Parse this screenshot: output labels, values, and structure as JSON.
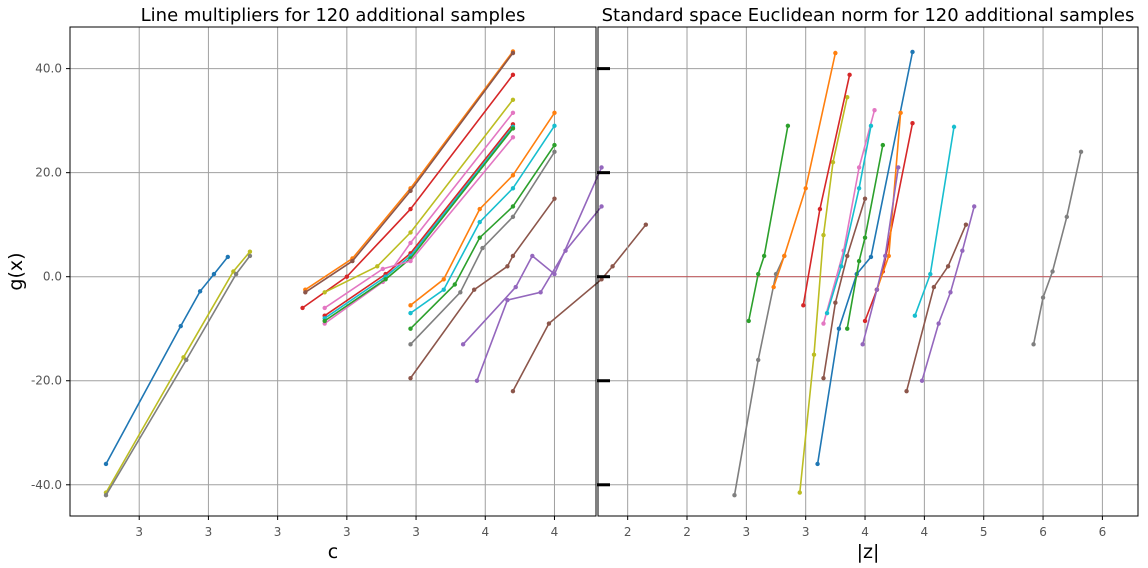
{
  "chart_data": [
    {
      "type": "line",
      "title": "Line multipliers for 120 additional samples",
      "xlabel": "c",
      "ylabel": "g(x)",
      "xlim": [
        2.25,
        4.15
      ],
      "ylim": [
        -46,
        48
      ],
      "xticks": [
        2.5,
        2.75,
        3.0,
        3.25,
        3.5,
        3.75,
        4.0
      ],
      "xtick_labels": [
        "3",
        "3",
        "3",
        "3",
        "3",
        "4",
        "4"
      ],
      "yticks": [
        -40,
        -20,
        0,
        20,
        40
      ],
      "ytick_labels": [
        "-40.0",
        "-20.0",
        "0.0",
        "20.0",
        "40.0"
      ],
      "grid": true,
      "series": [
        {
          "name": "s1",
          "color": "#1f77b4",
          "points": [
            [
              2.38,
              -36.0
            ],
            [
              2.65,
              -9.5
            ],
            [
              2.72,
              -2.8
            ],
            [
              2.77,
              0.5
            ],
            [
              2.82,
              3.8
            ]
          ]
        },
        {
          "name": "s2",
          "color": "#bcbd22",
          "points": [
            [
              2.38,
              -41.5
            ],
            [
              2.66,
              -15.5
            ],
            [
              2.84,
              1.0
            ],
            [
              2.9,
              4.8
            ]
          ]
        },
        {
          "name": "s3",
          "color": "#7f7f7f",
          "points": [
            [
              2.38,
              -42.0
            ],
            [
              2.67,
              -16.0
            ],
            [
              2.85,
              0.5
            ],
            [
              2.9,
              4.0
            ]
          ]
        },
        {
          "name": "s4",
          "color": "#ff7f0e",
          "points": [
            [
              3.1,
              -2.5
            ],
            [
              3.27,
              3.5
            ],
            [
              3.48,
              17.0
            ],
            [
              3.85,
              43.3
            ]
          ]
        },
        {
          "name": "s5",
          "color": "#8c564b",
          "points": [
            [
              3.1,
              -3.0
            ],
            [
              3.27,
              3.0
            ],
            [
              3.48,
              16.5
            ],
            [
              3.85,
              43.0
            ]
          ]
        },
        {
          "name": "s6",
          "color": "#d62728",
          "points": [
            [
              3.09,
              -6.0
            ],
            [
              3.25,
              0.0
            ],
            [
              3.48,
              13.0
            ],
            [
              3.85,
              38.8
            ]
          ]
        },
        {
          "name": "s7",
          "color": "#bcbd22",
          "points": [
            [
              3.17,
              -3.0
            ],
            [
              3.36,
              2.0
            ],
            [
              3.48,
              8.5
            ],
            [
              3.85,
              34.0
            ]
          ]
        },
        {
          "name": "s8",
          "color": "#e377c2",
          "points": [
            [
              3.17,
              -9.0
            ],
            [
              3.38,
              -1.0
            ],
            [
              3.48,
              6.5
            ],
            [
              3.85,
              31.5
            ]
          ]
        },
        {
          "name": "s9",
          "color": "#d62728",
          "points": [
            [
              3.17,
              -7.5
            ],
            [
              3.39,
              0.5
            ],
            [
              3.48,
              4.5
            ],
            [
              3.85,
              29.3
            ]
          ]
        },
        {
          "name": "s10",
          "color": "#17becf",
          "points": [
            [
              3.17,
              -8.0
            ],
            [
              3.39,
              0.0
            ],
            [
              3.48,
              4.0
            ],
            [
              3.85,
              28.8
            ]
          ]
        },
        {
          "name": "s11",
          "color": "#2ca02c",
          "points": [
            [
              3.17,
              -8.5
            ],
            [
              3.39,
              -0.5
            ],
            [
              3.48,
              3.5
            ],
            [
              3.85,
              28.5
            ]
          ]
        },
        {
          "name": "s12",
          "color": "#e377c2",
          "points": [
            [
              3.17,
              -6.0
            ],
            [
              3.38,
              1.5
            ],
            [
              3.48,
              3.0
            ],
            [
              3.85,
              26.8
            ]
          ]
        },
        {
          "name": "s13",
          "color": "#ff7f0e",
          "points": [
            [
              3.48,
              -5.5
            ],
            [
              3.6,
              -0.5
            ],
            [
              3.73,
              13.0
            ],
            [
              3.85,
              19.5
            ],
            [
              4.0,
              31.5
            ]
          ]
        },
        {
          "name": "s14",
          "color": "#17becf",
          "points": [
            [
              3.48,
              -7.0
            ],
            [
              3.6,
              -2.5
            ],
            [
              3.73,
              10.5
            ],
            [
              3.85,
              17.0
            ],
            [
              4.0,
              29.0
            ]
          ]
        },
        {
          "name": "s15",
          "color": "#2ca02c",
          "points": [
            [
              3.48,
              -10.0
            ],
            [
              3.64,
              -1.5
            ],
            [
              3.73,
              7.5
            ],
            [
              3.85,
              13.5
            ],
            [
              4.0,
              25.3
            ]
          ]
        },
        {
          "name": "s16",
          "color": "#7f7f7f",
          "points": [
            [
              3.48,
              -13.0
            ],
            [
              3.66,
              -3.0
            ],
            [
              3.74,
              5.5
            ],
            [
              3.85,
              11.5
            ],
            [
              4.0,
              24.0
            ]
          ]
        },
        {
          "name": "s17",
          "color": "#8c564b",
          "points": [
            [
              3.48,
              -19.5
            ],
            [
              3.71,
              -2.5
            ],
            [
              3.83,
              2.0
            ],
            [
              3.85,
              4.0
            ],
            [
              4.0,
              15.0
            ]
          ]
        },
        {
          "name": "s18",
          "color": "#9467bd",
          "points": [
            [
              3.67,
              -13.0
            ],
            [
              3.86,
              -2.0
            ],
            [
              3.92,
              4.0
            ],
            [
              4.0,
              0.5
            ],
            [
              4.17,
              21.0
            ]
          ]
        },
        {
          "name": "s19",
          "color": "#9467bd",
          "points": [
            [
              3.72,
              -20.0
            ],
            [
              3.83,
              -4.5
            ],
            [
              3.95,
              -3.0
            ],
            [
              4.04,
              5.0
            ],
            [
              4.17,
              13.5
            ]
          ]
        },
        {
          "name": "s20",
          "color": "#8c564b",
          "points": [
            [
              3.85,
              -22.0
            ],
            [
              3.98,
              -9.0
            ],
            [
              4.17,
              -0.5
            ],
            [
              4.21,
              2.0
            ],
            [
              4.33,
              10.0
            ]
          ]
        }
      ]
    },
    {
      "type": "line",
      "title": "Standard space Euclidean norm for 120 additional samples",
      "xlabel": "|z|",
      "ylabel": "",
      "xlim": [
        1.75,
        6.3
      ],
      "ylim": [
        -46,
        48
      ],
      "xticks": [
        2,
        2.5,
        3,
        3.5,
        4,
        4.5,
        5,
        5.5,
        6
      ],
      "xtick_labels": [
        "2",
        "2",
        "3",
        "3",
        "4",
        "4",
        "5",
        "6",
        "6"
      ],
      "yticks": [
        -40,
        -20,
        0,
        20,
        40
      ],
      "grid": true,
      "reference_y": 0,
      "series": [
        {
          "name": "s1",
          "color": "#1f77b4",
          "points": [
            [
              3.6,
              -36.0
            ],
            [
              3.78,
              -10.0
            ],
            [
              3.93,
              0.5
            ],
            [
              4.05,
              3.8
            ],
            [
              4.4,
              43.2
            ]
          ]
        },
        {
          "name": "s2",
          "color": "#bcbd22",
          "points": [
            [
              3.45,
              -41.5
            ],
            [
              3.57,
              -15.0
            ],
            [
              3.65,
              8.0
            ],
            [
              3.73,
              22.0
            ],
            [
              3.85,
              34.5
            ]
          ]
        },
        {
          "name": "s3",
          "color": "#7f7f7f",
          "points": [
            [
              2.9,
              -42.0
            ],
            [
              3.1,
              -16.0
            ],
            [
              3.25,
              0.5
            ],
            [
              3.32,
              4.0
            ]
          ]
        },
        {
          "name": "s4",
          "color": "#ff7f0e",
          "points": [
            [
              3.23,
              -2.0
            ],
            [
              3.32,
              4.0
            ],
            [
              3.5,
              17.0
            ],
            [
              3.75,
              43.0
            ]
          ]
        },
        {
          "name": "s5",
          "color": "#2ca02c",
          "points": [
            [
              3.02,
              -8.5
            ],
            [
              3.1,
              0.5
            ],
            [
              3.15,
              4.0
            ],
            [
              3.35,
              29.0
            ]
          ]
        },
        {
          "name": "s6",
          "color": "#d62728",
          "points": [
            [
              3.48,
              -5.5
            ],
            [
              3.62,
              13.0
            ],
            [
              3.87,
              38.8
            ]
          ]
        },
        {
          "name": "s7",
          "color": "#e377c2",
          "points": [
            [
              3.65,
              -9.0
            ],
            [
              3.82,
              5.0
            ],
            [
              3.95,
              21.0
            ],
            [
              4.08,
              32.0
            ]
          ]
        },
        {
          "name": "s8",
          "color": "#17becf",
          "points": [
            [
              3.68,
              -7.0
            ],
            [
              3.8,
              2.0
            ],
            [
              3.95,
              17.0
            ],
            [
              4.05,
              29.0
            ]
          ]
        },
        {
          "name": "s9",
          "color": "#d62728",
          "points": [
            [
              4.0,
              -8.5
            ],
            [
              4.1,
              -2.5
            ],
            [
              4.15,
              1.0
            ],
            [
              4.4,
              29.5
            ]
          ]
        },
        {
          "name": "s10",
          "color": "#ff7f0e",
          "points": [
            [
              4.1,
              -2.5
            ],
            [
              4.2,
              4.0
            ],
            [
              4.3,
              31.5
            ]
          ]
        },
        {
          "name": "s11",
          "color": "#2ca02c",
          "points": [
            [
              3.85,
              -10.0
            ],
            [
              3.95,
              3.0
            ],
            [
              4.0,
              7.5
            ],
            [
              4.15,
              25.3
            ]
          ]
        },
        {
          "name": "s12",
          "color": "#17becf",
          "points": [
            [
              4.42,
              -7.5
            ],
            [
              4.55,
              0.5
            ],
            [
              4.75,
              28.8
            ]
          ]
        },
        {
          "name": "s13",
          "color": "#8c564b",
          "points": [
            [
              3.65,
              -19.5
            ],
            [
              3.75,
              -5.0
            ],
            [
              3.85,
              4.0
            ],
            [
              4.0,
              15.0
            ]
          ]
        },
        {
          "name": "s14",
          "color": "#9467bd",
          "points": [
            [
              3.98,
              -13.0
            ],
            [
              4.1,
              -2.5
            ],
            [
              4.17,
              4.0
            ],
            [
              4.28,
              21.0
            ]
          ]
        },
        {
          "name": "s15",
          "color": "#9467bd",
          "points": [
            [
              4.48,
              -20.0
            ],
            [
              4.62,
              -9.0
            ],
            [
              4.72,
              -3.0
            ],
            [
              4.82,
              5.0
            ],
            [
              4.92,
              13.5
            ]
          ]
        },
        {
          "name": "s16",
          "color": "#8c564b",
          "points": [
            [
              4.35,
              -22.0
            ],
            [
              4.58,
              -2.0
            ],
            [
              4.7,
              2.0
            ],
            [
              4.85,
              10.0
            ]
          ]
        },
        {
          "name": "s17",
          "color": "#7f7f7f",
          "points": [
            [
              5.42,
              -13.0
            ],
            [
              5.5,
              -4.0
            ],
            [
              5.58,
              1.0
            ],
            [
              5.7,
              11.5
            ],
            [
              5.82,
              24.0
            ]
          ]
        }
      ]
    }
  ]
}
